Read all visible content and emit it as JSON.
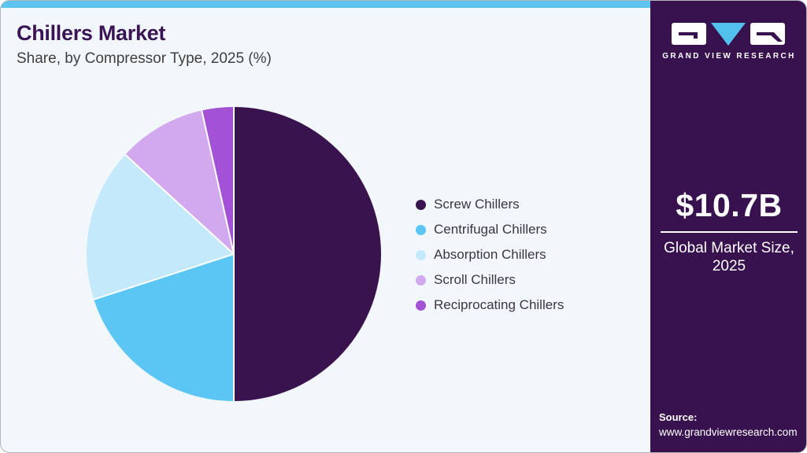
{
  "header": {
    "title": "Chillers Market",
    "subtitle": "Share, by Compressor Type, 2025 (%)"
  },
  "chart_data": {
    "type": "pie",
    "title": "Chillers Market Share, by Compressor Type, 2025 (%)",
    "labels": [
      "Screw Chillers",
      "Centrifugal Chillers",
      "Absorption Chillers",
      "Scroll Chillers",
      "Reciprocating Chillers"
    ],
    "values": [
      50.0,
      20.0,
      16.8,
      9.7,
      3.5
    ],
    "units": "%",
    "colors": [
      "#39134e",
      "#5bc6f3",
      "#c3e9fa",
      "#d2a8ef",
      "#a352d6"
    ],
    "start_angle_deg": 0,
    "direction": "clockwise",
    "legend_position": "right",
    "slice_separator_color": "#ffffff"
  },
  "sidebar": {
    "brand_name": "GRAND VIEW RESEARCH",
    "metric": {
      "value": "$10.7B",
      "label": "Global Market Size, 2025"
    },
    "source": {
      "label": "Source:",
      "url": "www.grandviewresearch.com"
    }
  },
  "colors": {
    "accent_bar": "#5cc4ee",
    "title": "#3a1555",
    "sidebar_bg": "#38124e",
    "card_bg": "#f2f7fb",
    "logo_triangle": "#53c1ee"
  }
}
